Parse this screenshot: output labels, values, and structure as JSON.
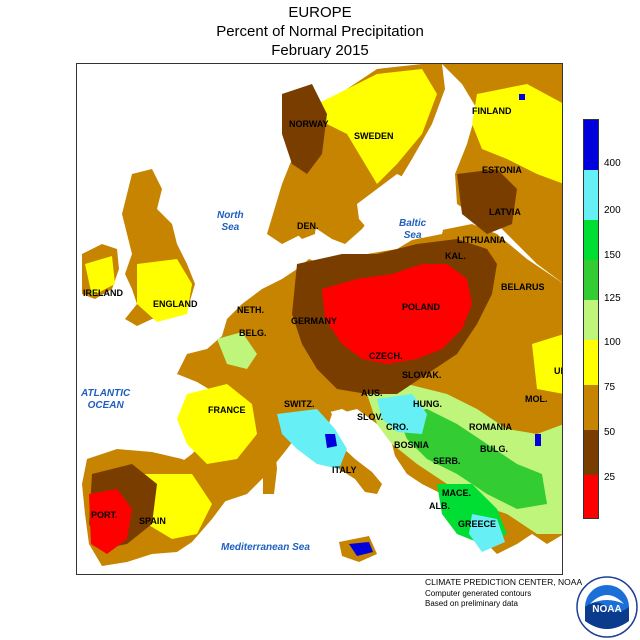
{
  "header": {
    "region": "EUROPE",
    "metric": "Percent of Normal Precipitation",
    "period": "February 2015"
  },
  "colors": {
    "lt25": "#ff0000",
    "p25_50": "#7a3d00",
    "p50_75": "#c68400",
    "p75_100": "#ffff00",
    "p100_125": "#bff57a",
    "p125_150": "#33cc33",
    "p150_200": "#00dd33",
    "p200_400": "#66f0f5",
    "gt400": "#0000dd",
    "water": "#ffffff",
    "sea_label": "#1f5fbf"
  },
  "legend": {
    "ticks": [
      "25",
      "50",
      "75",
      "100",
      "125",
      "150",
      "200",
      "400"
    ]
  },
  "countries": [
    {
      "id": "finland",
      "text": "FINLAND"
    },
    {
      "id": "norway",
      "text": "NORWAY"
    },
    {
      "id": "sweden",
      "text": "SWEDEN"
    },
    {
      "id": "estonia",
      "text": "ESTONIA"
    },
    {
      "id": "latvia",
      "text": "LATVIA"
    },
    {
      "id": "lithuania",
      "text": "LITHUANIA"
    },
    {
      "id": "den",
      "text": "DEN."
    },
    {
      "id": "kal",
      "text": "KAL."
    },
    {
      "id": "belarus",
      "text": "BELARUS"
    },
    {
      "id": "ireland",
      "text": "IRELAND"
    },
    {
      "id": "england",
      "text": "ENGLAND"
    },
    {
      "id": "neth",
      "text": "NETH."
    },
    {
      "id": "germany",
      "text": "GERMANY"
    },
    {
      "id": "poland",
      "text": "POLAND"
    },
    {
      "id": "belg",
      "text": "BELG."
    },
    {
      "id": "czech",
      "text": "CZECH."
    },
    {
      "id": "slovak",
      "text": "SLOVAK."
    },
    {
      "id": "uk",
      "text": "UK"
    },
    {
      "id": "aus",
      "text": "AUS."
    },
    {
      "id": "mol",
      "text": "MOL."
    },
    {
      "id": "france",
      "text": "FRANCE"
    },
    {
      "id": "switz",
      "text": "SWITZ."
    },
    {
      "id": "slov",
      "text": "SLOV."
    },
    {
      "id": "hung",
      "text": "HUNG."
    },
    {
      "id": "romania",
      "text": "ROMANIA"
    },
    {
      "id": "cro",
      "text": "CRO."
    },
    {
      "id": "bosnia",
      "text": "BOSNIA"
    },
    {
      "id": "serb",
      "text": "SERB."
    },
    {
      "id": "bulg",
      "text": "BULG."
    },
    {
      "id": "italy",
      "text": "ITALY"
    },
    {
      "id": "mace",
      "text": "MACE."
    },
    {
      "id": "alb",
      "text": "ALB."
    },
    {
      "id": "greece",
      "text": "GREECE"
    },
    {
      "id": "port",
      "text": "PORT."
    },
    {
      "id": "spain",
      "text": "SPAIN"
    }
  ],
  "seas": [
    {
      "id": "north-sea",
      "text": "North\nSea"
    },
    {
      "id": "baltic-sea",
      "text": "Baltic\nSea"
    },
    {
      "id": "atlantic",
      "text": "ATLANTIC\nOCEAN"
    },
    {
      "id": "med-sea",
      "text": "Mediterranean Sea"
    }
  ],
  "credits": {
    "line1": "CLIMATE PREDICTION CENTER, NOAA",
    "line2": "Computer generated contours",
    "line3": "Based on preliminary data"
  },
  "logo": {
    "text": "NOAA"
  }
}
